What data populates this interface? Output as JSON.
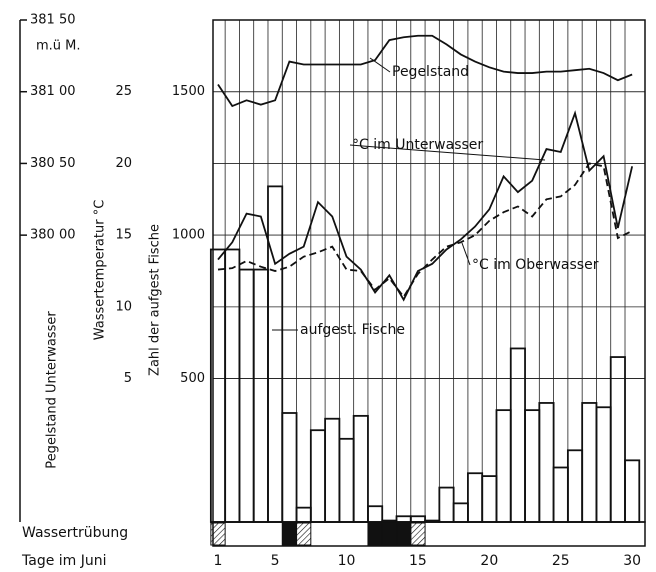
{
  "chart_data": {
    "type": "combo",
    "x_label": "Tage im Juni",
    "categories": [
      1,
      2,
      3,
      4,
      5,
      6,
      7,
      8,
      9,
      10,
      11,
      12,
      13,
      14,
      15,
      16,
      17,
      18,
      19,
      20,
      21,
      22,
      23,
      24,
      25,
      26,
      27,
      28,
      29,
      30
    ],
    "xlim": [
      0.65,
      30.9
    ],
    "xticks": [
      1,
      5,
      10,
      15,
      20,
      25,
      30
    ],
    "ylabel": "Zahl der aufgest Fische",
    "ylim": [
      0,
      1750
    ],
    "yticks": [
      500,
      1000,
      1500
    ],
    "y2label": "Wassertemperatur °C",
    "y2lim": [
      -5,
      30
    ],
    "y2ticks": [
      5,
      10,
      15,
      20,
      25
    ],
    "y3label": "Pegelstand Unterwasser",
    "y3unit": "m.ü M.",
    "y3lim": [
      378,
      381.5
    ],
    "y3ticks": [
      {
        "value": 381.5,
        "label": "381 50"
      },
      {
        "value": 381,
        "label": "381 00"
      },
      {
        "value": 380.5,
        "label": "380 50"
      },
      {
        "value": 380,
        "label": "380 00"
      }
    ],
    "grid": true,
    "series": [
      {
        "name": "aufgest. Fische",
        "kind": "step",
        "axis": "y",
        "color": "#111",
        "values": [
          950,
          950,
          880,
          880,
          1170,
          380,
          50,
          320,
          360,
          290,
          370,
          55,
          5,
          20,
          20,
          5,
          120,
          65,
          170,
          160,
          390,
          605,
          390,
          415,
          190,
          250,
          415,
          400,
          575,
          215
        ]
      },
      {
        "name": "°C im Unterwasser",
        "kind": "line",
        "axis": "y2",
        "color": "#111",
        "dash": false,
        "values": [
          13.3,
          14.5,
          16.5,
          16.3,
          13,
          13.7,
          14.2,
          17.3,
          16.3,
          13.5,
          12.6,
          11,
          12.2,
          10.5,
          12.5,
          13,
          14,
          14.7,
          15.6,
          16.8,
          19.1,
          18,
          18.8,
          21,
          20.8,
          23.5,
          19.5,
          20.5,
          15.5,
          19.8
        ]
      },
      {
        "name": "°C im Oberwasser",
        "kind": "line",
        "axis": "y2",
        "color": "#111",
        "dash": true,
        "values": [
          12.6,
          12.7,
          13.2,
          12.8,
          12.5,
          12.8,
          13.5,
          13.8,
          14.2,
          12.6,
          12.5,
          11.2,
          12,
          10.7,
          12.3,
          13.3,
          14.2,
          14.5,
          15,
          16,
          16.6,
          17,
          16.3,
          17.5,
          17.7,
          18.5,
          20,
          19.8,
          14.8,
          15.3
        ]
      },
      {
        "name": "Pegelstand",
        "kind": "line",
        "axis": "y3",
        "color": "#111",
        "dash": false,
        "values": [
          381.05,
          380.9,
          380.94,
          380.91,
          380.94,
          381.21,
          381.19,
          381.19,
          381.19,
          381.19,
          381.19,
          381.22,
          381.36,
          381.38,
          381.39,
          381.39,
          381.33,
          381.26,
          381.21,
          381.17,
          381.14,
          381.13,
          381.13,
          381.14,
          381.14,
          381.15,
          381.16,
          381.13,
          381.08,
          381.12
        ]
      }
    ],
    "turbidity": {
      "label": "Wassertrübung",
      "strong_days": [
        6,
        12,
        13,
        14
      ],
      "light_days": [
        1,
        7,
        15
      ]
    }
  }
}
